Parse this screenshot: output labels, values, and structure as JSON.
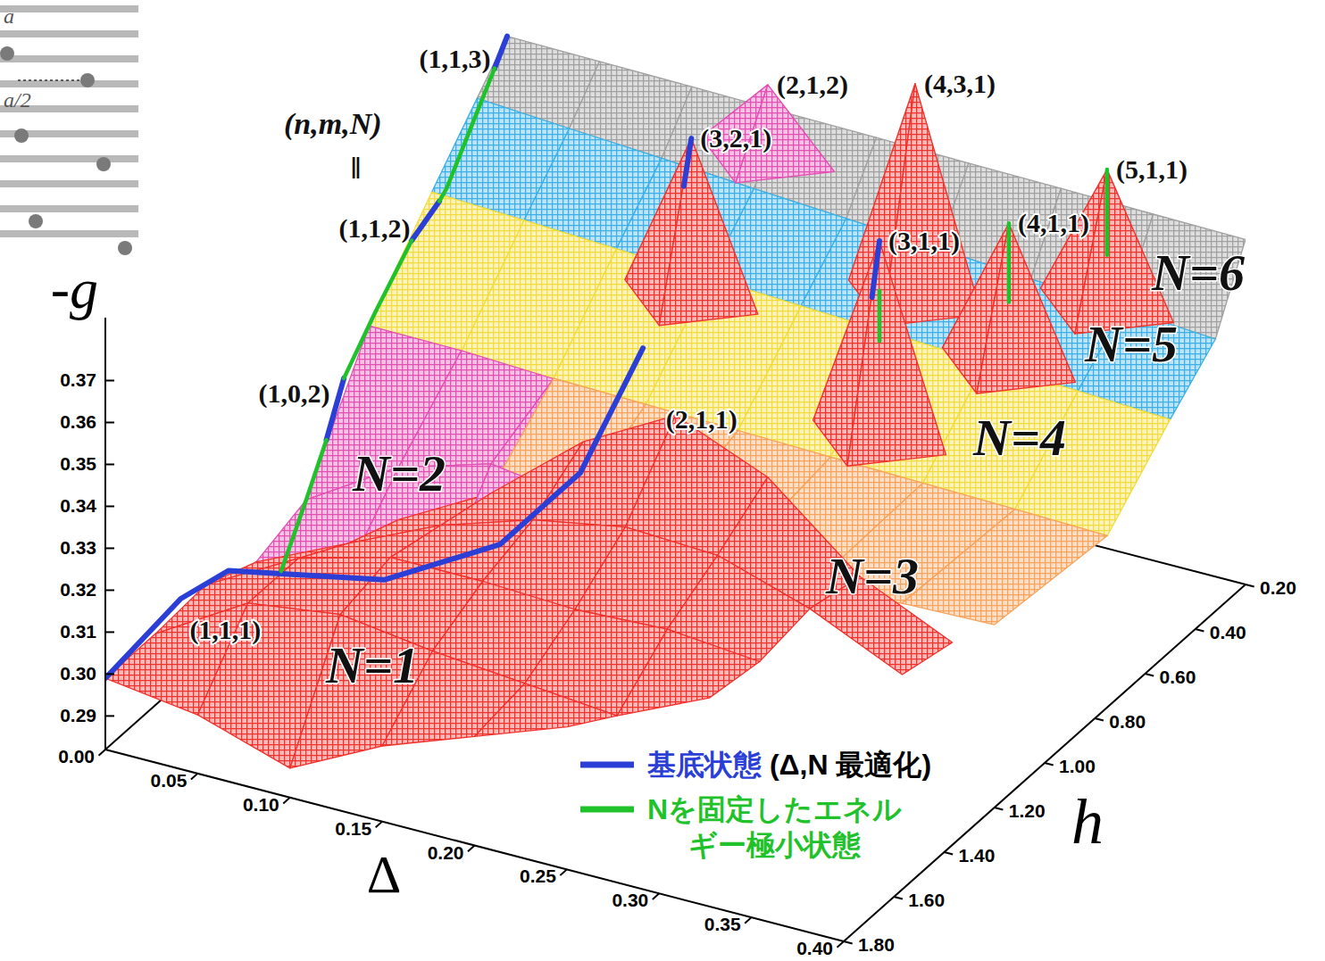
{
  "chart_data": {
    "type": "surface3d",
    "x_label": "Δ",
    "y_label": "h",
    "z_label": "-g",
    "xlim": [
      0,
      0.4
    ],
    "xticks": [
      {
        "value": 0,
        "label": "0.00"
      },
      0.05,
      {
        "value": 0.1,
        "label": "0.10"
      },
      0.15,
      {
        "value": 0.2,
        "label": "0.20"
      },
      0.25,
      {
        "value": 0.3,
        "label": "0.30"
      },
      0.35,
      {
        "value": 0.4,
        "label": "0.40"
      }
    ],
    "ylim": [
      0.2,
      1.8
    ],
    "yticks": [
      {
        "value": 0.2,
        "label": "0.20"
      },
      {
        "value": 0.4,
        "label": "0.40"
      },
      {
        "value": 0.6,
        "label": "0.60"
      },
      {
        "value": 0.8,
        "label": "0.80"
      },
      {
        "value": 1.0,
        "label": "1.00"
      },
      {
        "value": 1.2,
        "label": "1.20"
      },
      {
        "value": 1.4,
        "label": "1.40"
      },
      {
        "value": 1.6,
        "label": "1.60"
      },
      {
        "value": 1.8,
        "label": "1.80"
      }
    ],
    "zlim": [
      0.282,
      0.385
    ],
    "zticks": [
      0.29,
      {
        "value": 0.3,
        "label": "0.30"
      },
      0.31,
      0.32,
      0.33,
      0.34,
      0.35,
      0.36,
      0.37
    ],
    "x": [
      0,
      0.05,
      0.1,
      0.15,
      0.2,
      0.25,
      0.3,
      0.35,
      0.4
    ],
    "surfaces": [
      {
        "name": "N=1",
        "color": "#f0322d",
        "y": [
          1.8,
          1.6,
          1.4,
          1.2,
          1.0
        ],
        "z": [
          [
            0.299,
            0.296,
            0.289,
            0.3,
            0.308,
            0.316,
            null,
            null,
            null
          ],
          [
            0.299,
            0.312,
            0.315,
            0.312,
            0.31,
            0.308,
            0.318,
            null,
            null
          ],
          [
            0.3,
            0.312,
            0.318,
            0.318,
            0.317,
            0.318,
            0.316,
            null,
            null
          ],
          [
            0.2948,
            0.305,
            0.315,
            0.322,
            0.326,
            0.325,
            0.318,
            0.308,
            null
          ],
          [
            0.292,
            0.3,
            0.312,
            0.33,
            0.342,
            0.333,
            0.315,
            0.305,
            null
          ]
        ]
      },
      {
        "name": "N=2",
        "color": "#e34fb3",
        "y": [
          0.75,
          1.0,
          1.2
        ],
        "z": [
          [
            0.3272,
            0.327,
            0.326,
            0.324,
            0.32,
            0.315,
            null,
            null,
            null
          ],
          [
            0.299,
            0.3125,
            0.319,
            0.316,
            0.309,
            0.2977,
            null,
            null,
            null
          ],
          [
            0.2948,
            0.2984,
            0.3001,
            0.2992,
            0.2985,
            0.2977,
            null,
            null,
            null
          ]
        ]
      },
      {
        "name": "N=3",
        "color": "#f7a35c",
        "y": [
          0.75,
          1.2
        ],
        "z": [
          [
            null,
            null,
            0.3261,
            0.3256,
            0.3251,
            0.3245,
            0.324,
            0.3235,
            0.3229
          ],
          [
            null,
            null,
            0.302,
            0.31,
            0.316,
            0.32,
            0.323,
            0.325,
            0.3256
          ]
        ]
      },
      {
        "name": "N=4",
        "color": "#f2dc3c",
        "y": [
          0.5,
          0.75
        ],
        "z": [
          [
            0.3458,
            0.3448,
            0.3437,
            0.3426,
            0.3415,
            0.3405,
            0.3394,
            0.3384,
            0.3373
          ],
          [
            0.3272,
            0.3267,
            0.3261,
            0.3256,
            0.3251,
            0.3245,
            0.324,
            0.3235,
            0.3229
          ]
        ]
      },
      {
        "name": "N=5",
        "color": "#3cb0e6",
        "y": [
          0.32,
          0.5
        ],
        "z": [
          [
            0.3586,
            0.3571,
            0.3557,
            0.3542,
            0.3528,
            0.3513,
            0.3498,
            0.3484,
            0.3469
          ],
          [
            0.3458,
            0.3448,
            0.3437,
            0.3426,
            0.3415,
            0.3405,
            0.3394,
            0.3384,
            0.3373
          ]
        ]
      },
      {
        "name": "N=6",
        "color": "#a0a0a0",
        "y": [
          0.2,
          0.32
        ],
        "z": [
          [
            0.367,
            0.3667,
            0.3664,
            0.366,
            0.3657,
            0.3653,
            0.365,
            0.3646,
            0.3643
          ],
          [
            0.3586,
            0.3571,
            0.3557,
            0.3542,
            0.3528,
            0.3513,
            0.3498,
            0.3484,
            0.3469
          ]
        ]
      }
    ],
    "peaks": [
      {
        "label": "(3,2,1)",
        "color": "#f0322d",
        "x": 0.127,
        "y": 0.4,
        "z": 0.3678,
        "base": 0.33
      },
      {
        "label": "(2,1,2)",
        "color": "#e34fb3",
        "x": 0.1412,
        "y": 0.2,
        "z": 0.3716,
        "base": 0.355
      },
      {
        "label": "(4,3,1)",
        "color": "#f0322d",
        "x": 0.221,
        "y": 0.2,
        "z": 0.381,
        "base": 0.33
      },
      {
        "label": "(5,1,1)",
        "color": "#f0322d",
        "x": 0.325,
        "y": 0.2,
        "z": 0.3724,
        "base": 0.34
      },
      {
        "label": "(3,1,1)",
        "color": "#f0322d",
        "x": 0.2425,
        "y": 0.5,
        "z": 0.3619,
        "base": 0.315
      },
      {
        "label": "(4,1,1)",
        "color": "#f0322d",
        "x": 0.2922,
        "y": 0.35,
        "z": 0.3638,
        "base": 0.33
      }
    ],
    "lines": [
      {
        "name": "基底状態 (Δ,N 最適化)",
        "color": "#2b3fd6",
        "x": [
          0,
          0,
          0,
          0.0898,
          0.1321,
          0.1552,
          0.1756,
          null,
          0,
          0,
          null,
          0,
          0,
          null,
          0,
          0,
          null,
          0.127,
          0.127,
          null,
          0.2425,
          0.2425
        ],
        "y": [
          1.8,
          1.5,
          1.31,
          1.35,
          1.2,
          1.05,
          0.95,
          null,
          0.92,
          0.85,
          null,
          0.58,
          0.47,
          null,
          0.25,
          0.2,
          null,
          0.43,
          0.4,
          null,
          0.53,
          0.5
        ],
        "z": [
          0.299,
          0.302,
          0.2986,
          0.3088,
          0.3141,
          0.3258,
          0.3526,
          null,
          0.309,
          0.32,
          null,
          0.3385,
          0.342,
          null,
          0.362,
          0.367,
          null,
          0.358,
          0.3678,
          null,
          0.35,
          0.3619
        ]
      },
      {
        "name": "Nを固定したエネルギー極小状態",
        "color": "#1fc22a",
        "x": [
          0,
          0,
          0,
          null,
          0,
          0,
          0,
          null,
          0,
          0,
          0,
          null,
          0.325,
          0.325,
          null,
          0.2425,
          0.2425,
          null,
          0.2922,
          0.2922
        ],
        "y": [
          1.1,
          1.0,
          0.92,
          null,
          0.85,
          0.726,
          0.58,
          null,
          0.47,
          0.44,
          0.25,
          null,
          0.2,
          0.2,
          null,
          0.5,
          0.5,
          null,
          0.35,
          0.35
        ],
        "z": [
          0.2873,
          0.299,
          0.309,
          null,
          0.32,
          0.3291,
          0.3385,
          null,
          0.342,
          0.3436,
          0.362,
          null,
          0.352,
          0.3724,
          null,
          0.338,
          0.35,
          null,
          0.345,
          0.3638
        ]
      }
    ],
    "annotations": [
      {
        "text": "(1,1,1)",
        "x": 0,
        "y": 1.5,
        "z": 0.302
      },
      {
        "text": "(1,0,2)",
        "x": 0,
        "y": 0.87,
        "z": 0.3175
      },
      {
        "text": "(1,1,2)",
        "x": 0,
        "y": 0.55,
        "z": 0.3397
      },
      {
        "text": "(1,1,3)",
        "x": 0,
        "y": 0.23,
        "z": 0.3632
      },
      {
        "text": "(2,1,1)",
        "x": 0.19,
        "y": 1.0,
        "z": 0.34
      }
    ],
    "key_label": "(n,m,N)",
    "key_symbol": "‖",
    "inset_labels": [
      "a",
      "a/2"
    ],
    "legend": "bottom"
  }
}
